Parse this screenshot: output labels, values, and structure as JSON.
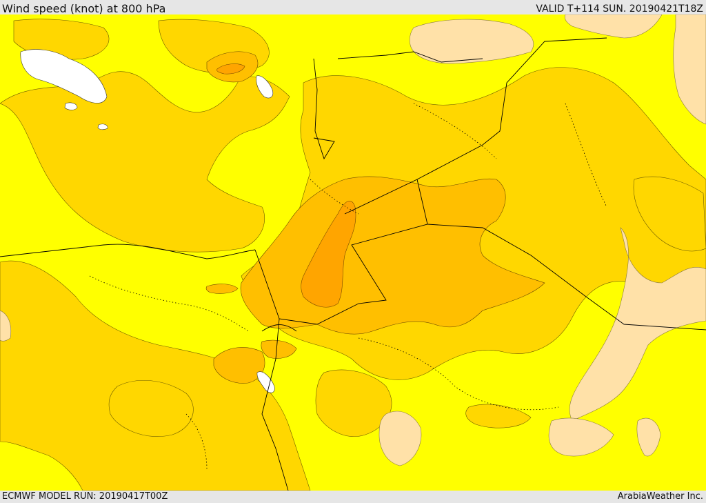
{
  "header": {
    "title": "Wind speed (knot) at 800 hPa",
    "valid": "VALID T+114 SUN. 20190421T18Z"
  },
  "footer": {
    "model_run": "ECMWF MODEL RUN: 20190417T00Z",
    "credit": "ArabiaWeather Inc."
  },
  "colors": {
    "band_lowest": "#ffe1a8",
    "band_low": "#ffff00",
    "band_mid": "#ffd700",
    "band_high": "#ffbf00",
    "band_higher": "#ffa500",
    "land_ice": "#ffffff",
    "border": "#000000"
  }
}
